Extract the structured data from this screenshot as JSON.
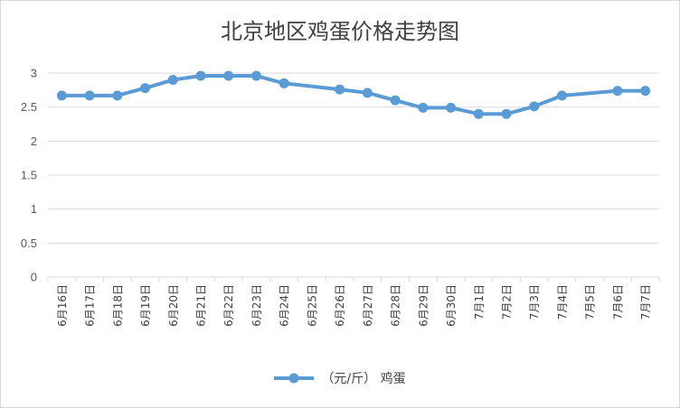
{
  "chart_data": {
    "type": "line",
    "title": "北京地区鸡蛋价格走势图",
    "xlabel": "",
    "ylabel": "",
    "ylim": [
      0,
      3
    ],
    "yticks": [
      "0",
      "0.5",
      "1",
      "1.5",
      "2",
      "2.5",
      "3"
    ],
    "grid": true,
    "legend_position": "bottom",
    "categories": [
      "6月16日",
      "6月17日",
      "6月18日",
      "6月19日",
      "6月20日",
      "6月21日",
      "6月22日",
      "6月23日",
      "6月24日",
      "6月25日",
      "6月26日",
      "6月27日",
      "6月28日",
      "6月29日",
      "6月30日",
      "7月1日",
      "7月2日",
      "7月3日",
      "7月4日",
      "7月5日",
      "7月6日",
      "7月7日"
    ],
    "series": [
      {
        "name": "（元/斤） 鸡蛋",
        "color": "#5b9bd5",
        "values": [
          2.67,
          2.67,
          2.67,
          2.78,
          2.9,
          2.96,
          2.96,
          2.96,
          2.85,
          null,
          2.76,
          2.71,
          2.6,
          2.49,
          2.49,
          2.4,
          2.4,
          2.51,
          2.67,
          null,
          2.74,
          2.74
        ]
      }
    ]
  }
}
